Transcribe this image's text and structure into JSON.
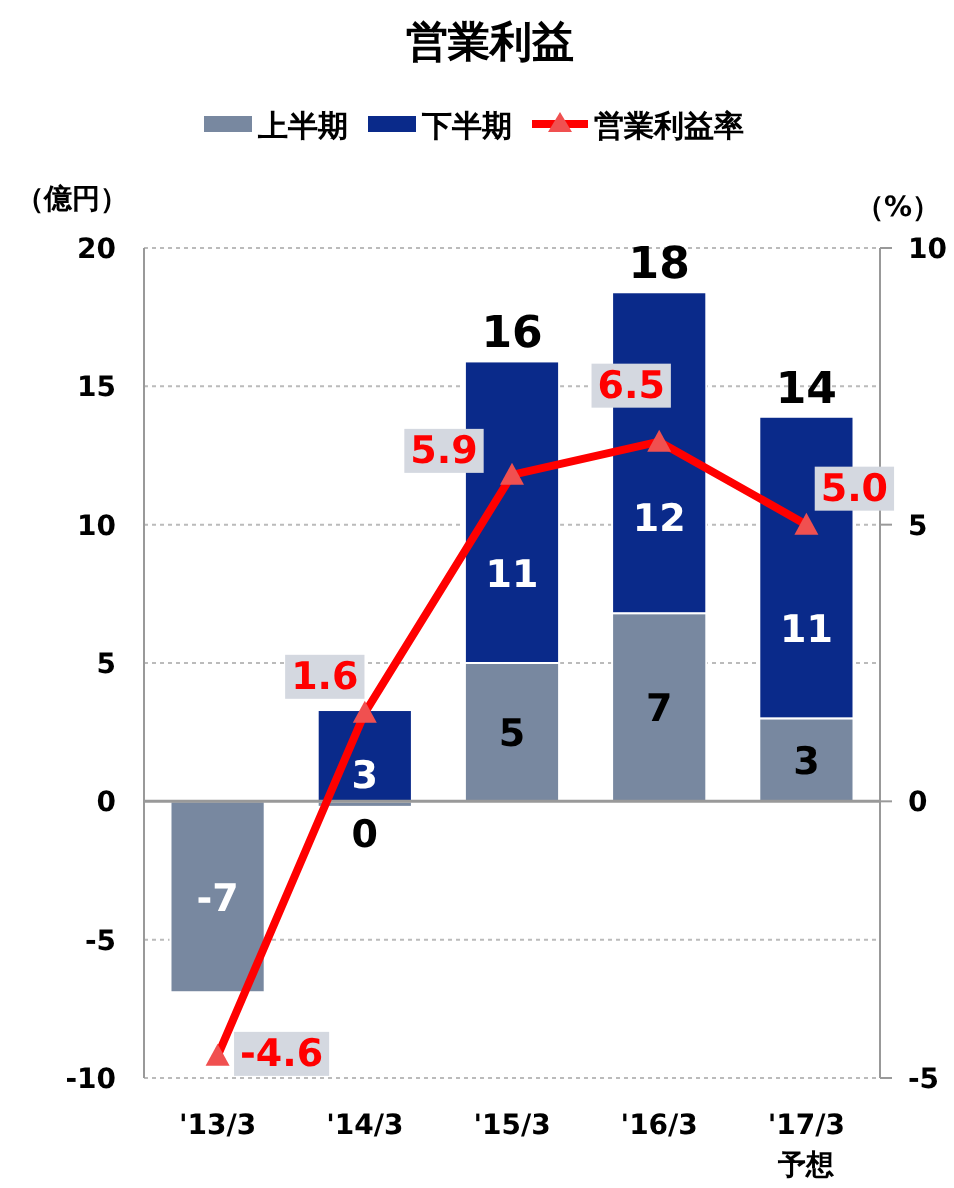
{
  "chart_data": {
    "type": "bar",
    "stacked": true,
    "title": "営業利益",
    "ylabel": "（億円）",
    "y2label": "（%）",
    "categories": [
      "'13/3",
      "'14/3",
      "'15/3",
      "'16/3",
      "'17/3\n予想"
    ],
    "series": [
      {
        "name": "上半期",
        "color": "#7888a0",
        "values": [
          -6.9,
          -0.2,
          5.0,
          6.8,
          3.0
        ],
        "value_labels": [
          "-7",
          "0",
          "5",
          "7",
          "3"
        ]
      },
      {
        "name": "下半期",
        "color": "#0a2a8a",
        "values": [
          null,
          3.3,
          10.9,
          11.6,
          10.9
        ],
        "value_labels": [
          null,
          "3",
          "11",
          "12",
          "11"
        ]
      },
      {
        "name": "営業利益率",
        "type": "line",
        "axis": "y2",
        "color": "#ff0000",
        "marker": "triangle",
        "values": [
          -4.6,
          1.6,
          5.9,
          6.5,
          5.0
        ],
        "value_labels": [
          "-4.6",
          "1.6",
          "5.9",
          "6.5",
          "5.0"
        ]
      }
    ],
    "totals": [
      null,
      null,
      "16",
      "18",
      "14"
    ],
    "ylim": [
      -10,
      20
    ],
    "yticks": [
      -10,
      -5,
      0,
      5,
      10,
      15,
      20
    ],
    "y2lim": [
      -5,
      10
    ],
    "y2ticks": [
      -5,
      0,
      5,
      10
    ],
    "grid": "y",
    "legend": "top"
  }
}
